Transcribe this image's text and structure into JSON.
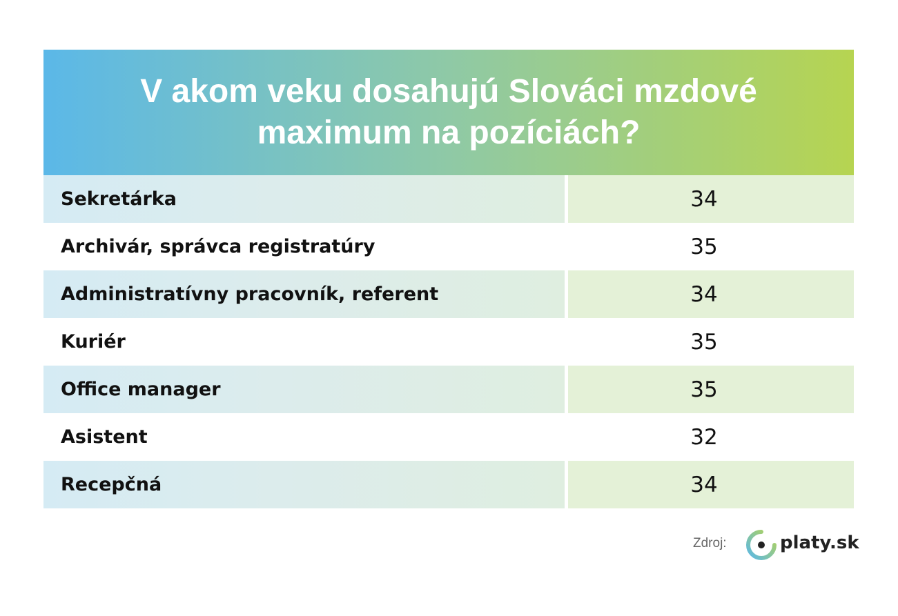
{
  "header": {
    "title_lines": [
      "V akom veku dosahujú Slováci mzdové",
      "maximum na pozíciách?"
    ]
  },
  "table": {
    "rows": [
      [
        "Sekretárka",
        34
      ],
      [
        "Archivár, správca registratúry",
        35
      ],
      [
        "Administratívny pracovník, referent",
        34
      ],
      [
        "Kuriér",
        35
      ],
      [
        "Office manager",
        35
      ],
      [
        "Asistent",
        32
      ],
      [
        "Recepčná",
        34
      ]
    ]
  },
  "footer": {
    "source_label": "Zdroj:",
    "logo_text": "platy.sk"
  }
}
